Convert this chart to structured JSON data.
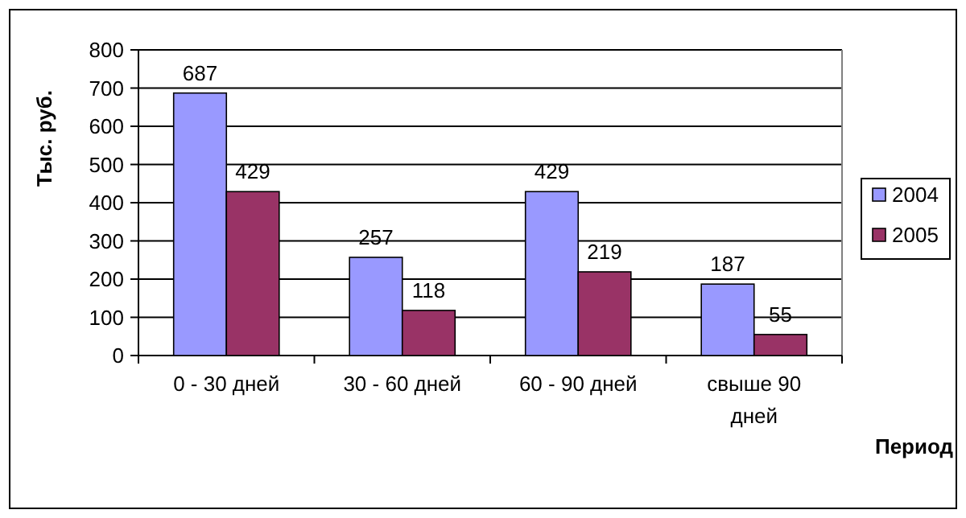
{
  "chart_data": {
    "type": "bar",
    "xlabel": "Период",
    "ylabel": "Тыс. руб.",
    "categories": [
      "0 - 30 дней",
      "30 - 60 дней",
      "60 - 90 дней",
      "свыше 90 дней"
    ],
    "series": [
      {
        "name": "2004",
        "color": "#9999ff",
        "values": [
          687,
          257,
          429,
          187
        ]
      },
      {
        "name": "2005",
        "color": "#993366",
        "values": [
          429,
          118,
          219,
          55
        ]
      }
    ],
    "ylim": [
      0,
      800
    ],
    "yticks": [
      0,
      100,
      200,
      300,
      400,
      500,
      600,
      700,
      800
    ],
    "grid": "y",
    "legend": "right",
    "data_labels": true
  }
}
